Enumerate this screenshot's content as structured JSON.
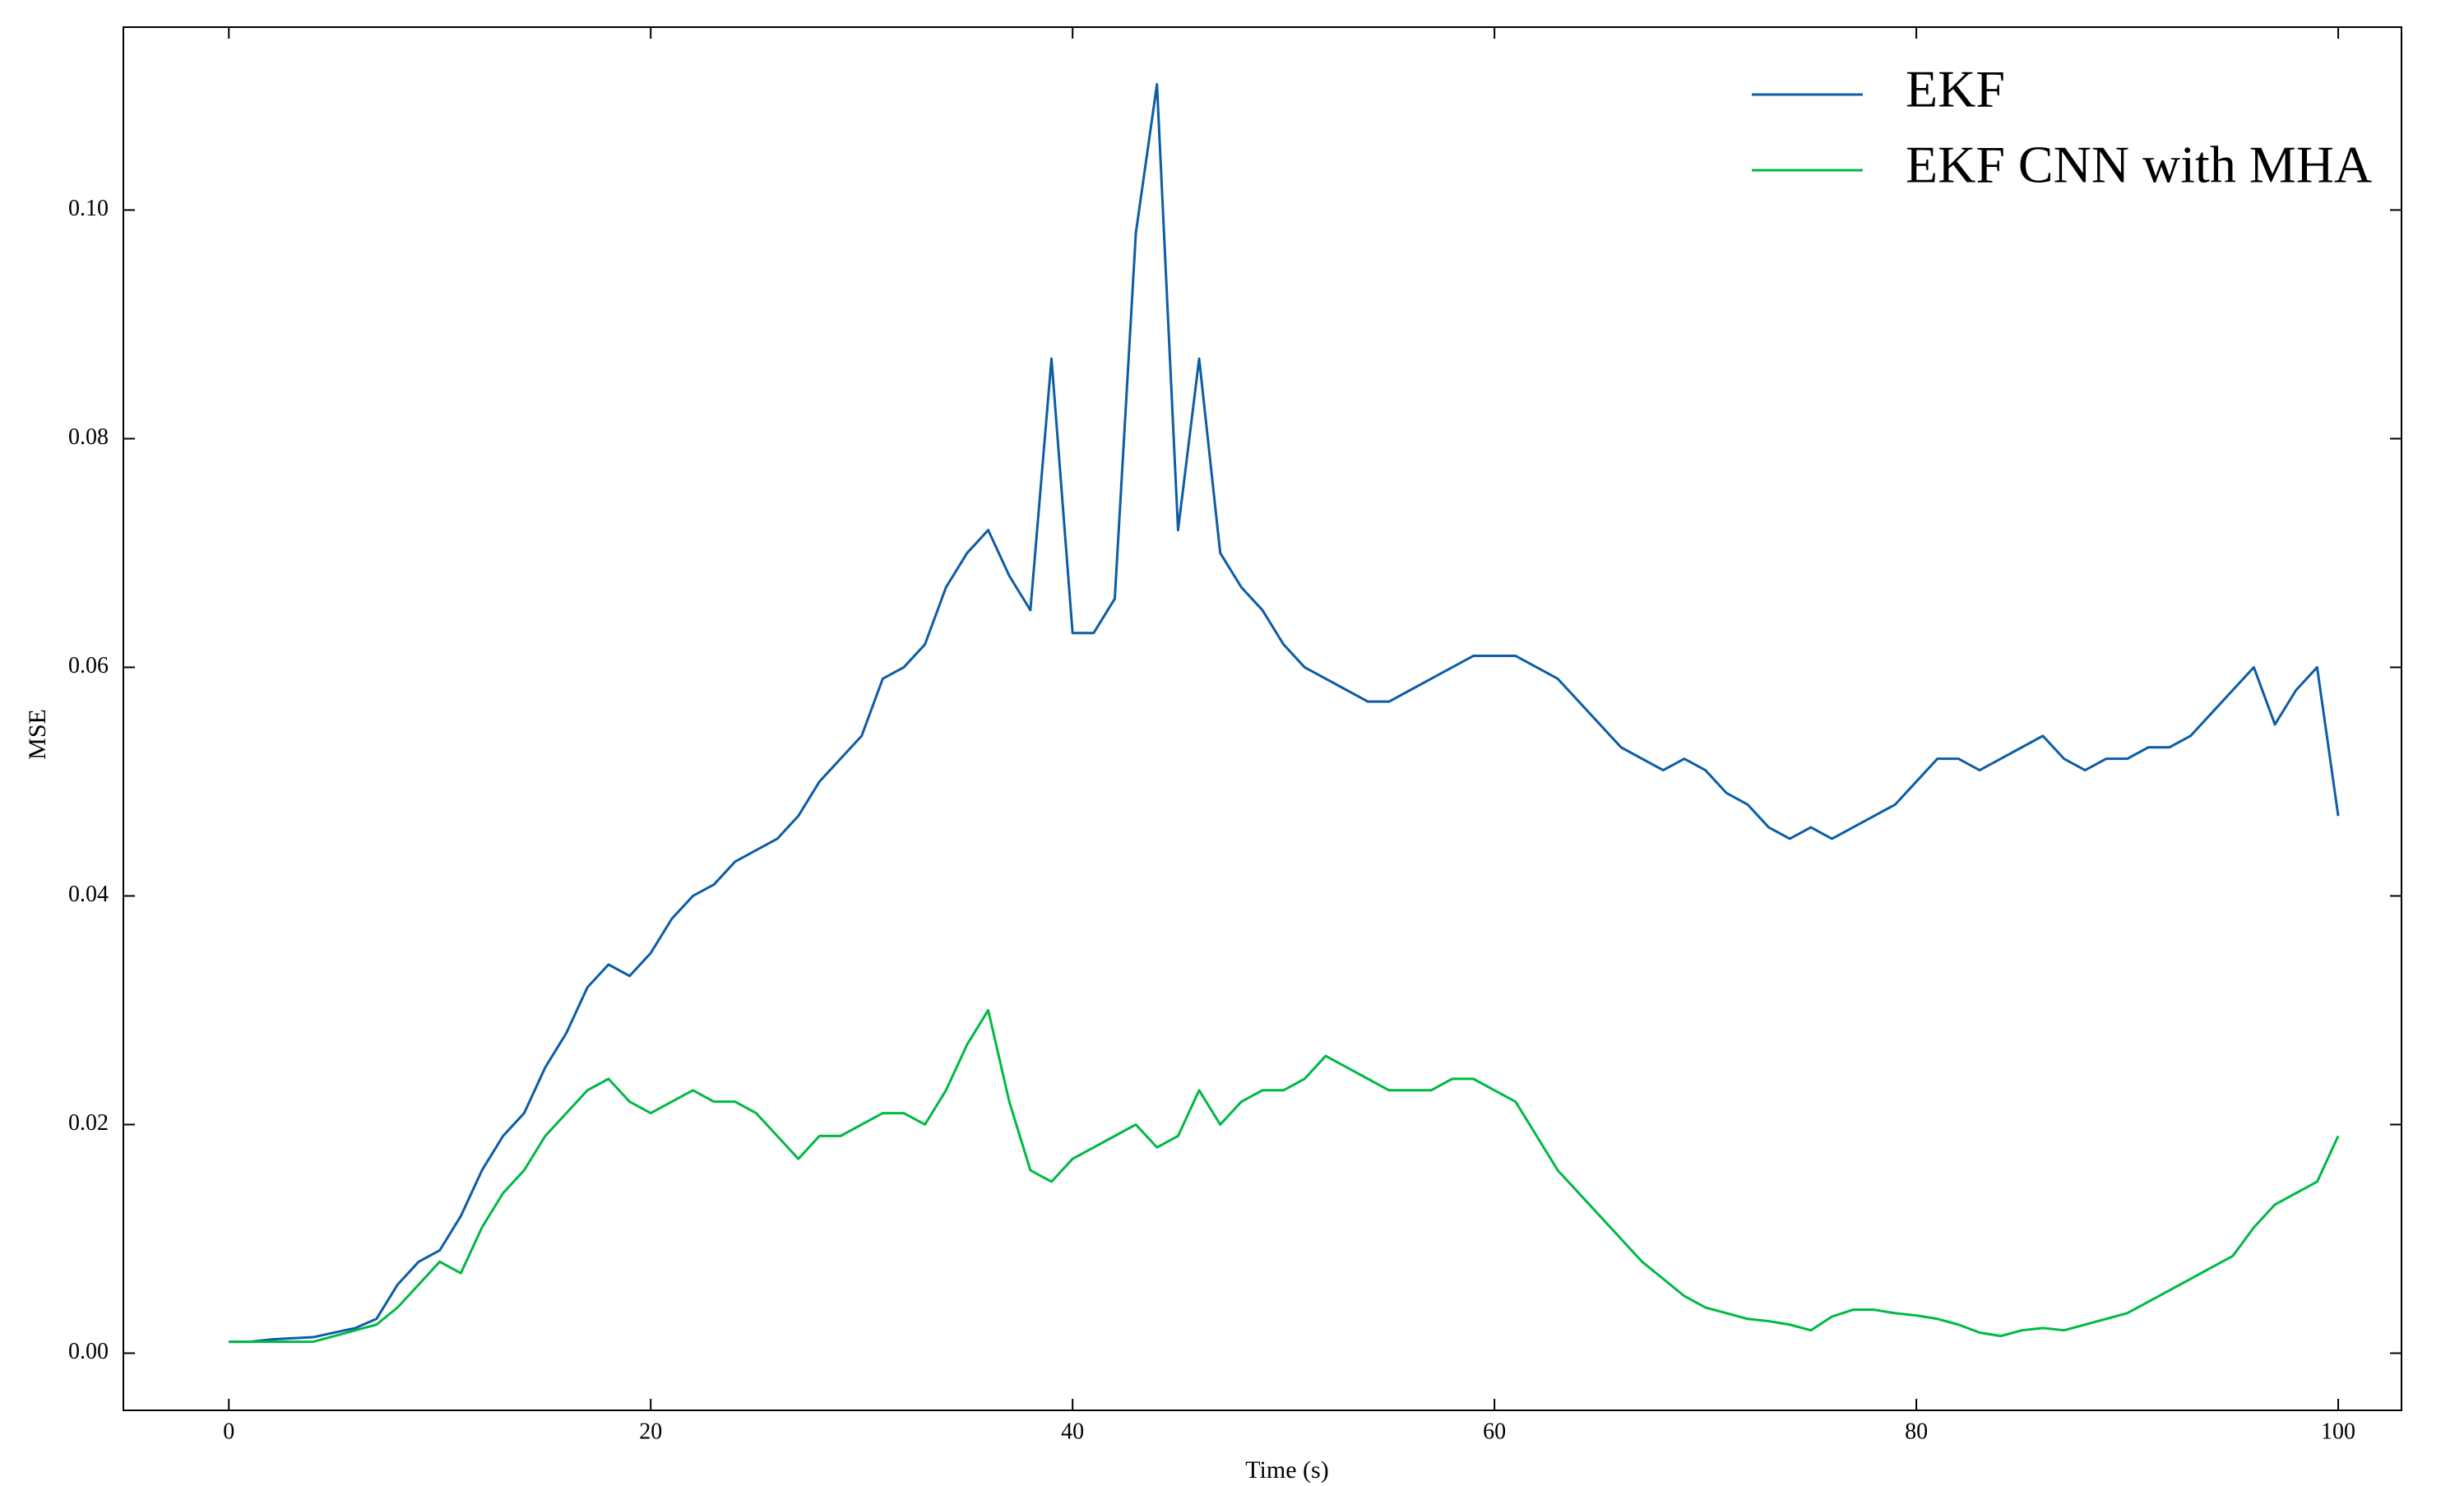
{
  "chart_data": {
    "type": "line",
    "xlabel": "Time (s)",
    "ylabel": "MSE",
    "x": [
      0,
      1,
      2,
      3,
      4,
      5,
      6,
      7,
      8,
      9,
      10,
      11,
      12,
      13,
      14,
      15,
      16,
      17,
      18,
      19,
      20,
      21,
      22,
      23,
      24,
      25,
      26,
      27,
      28,
      29,
      30,
      31,
      32,
      33,
      34,
      35,
      36,
      37,
      38,
      39,
      40,
      41,
      42,
      43,
      44,
      45,
      46,
      47,
      48,
      49,
      50,
      51,
      52,
      53,
      54,
      55,
      56,
      57,
      58,
      59,
      60,
      61,
      62,
      63,
      64,
      65,
      66,
      67,
      68,
      69,
      70,
      71,
      72,
      73,
      74,
      75,
      76,
      77,
      78,
      79,
      80,
      81,
      82,
      83,
      84,
      85,
      86,
      87,
      88,
      89,
      90,
      91,
      92,
      93,
      94,
      95,
      96,
      97,
      98,
      99,
      100
    ],
    "series": [
      {
        "name": "EKF",
        "color": "#0c5da5",
        "values": [
          0.001,
          0.001,
          0.0012,
          0.0013,
          0.0014,
          0.0018,
          0.0022,
          0.003,
          0.006,
          0.008,
          0.009,
          0.012,
          0.016,
          0.019,
          0.021,
          0.025,
          0.028,
          0.032,
          0.034,
          0.033,
          0.035,
          0.038,
          0.04,
          0.041,
          0.043,
          0.044,
          0.045,
          0.047,
          0.05,
          0.052,
          0.054,
          0.059,
          0.06,
          0.062,
          0.067,
          0.07,
          0.072,
          0.068,
          0.065,
          0.087,
          0.063,
          0.063,
          0.066,
          0.098,
          0.111,
          0.072,
          0.087,
          0.07,
          0.067,
          0.065,
          0.062,
          0.06,
          0.059,
          0.058,
          0.057,
          0.057,
          0.058,
          0.059,
          0.06,
          0.061,
          0.061,
          0.061,
          0.06,
          0.059,
          0.057,
          0.055,
          0.053,
          0.052,
          0.051,
          0.052,
          0.051,
          0.049,
          0.048,
          0.046,
          0.045,
          0.046,
          0.045,
          0.046,
          0.047,
          0.048,
          0.05,
          0.052,
          0.052,
          0.051,
          0.052,
          0.053,
          0.054,
          0.052,
          0.051,
          0.052,
          0.052,
          0.053,
          0.053,
          0.054,
          0.056,
          0.058,
          0.06,
          0.055,
          0.058,
          0.06,
          0.047
        ]
      },
      {
        "name": "EKF CNN with MHA",
        "color": "#00b945",
        "values": [
          0.001,
          0.001,
          0.001,
          0.001,
          0.001,
          0.0015,
          0.002,
          0.0025,
          0.004,
          0.006,
          0.008,
          0.007,
          0.011,
          0.014,
          0.016,
          0.019,
          0.021,
          0.023,
          0.024,
          0.022,
          0.021,
          0.022,
          0.023,
          0.022,
          0.022,
          0.021,
          0.019,
          0.017,
          0.019,
          0.019,
          0.02,
          0.021,
          0.021,
          0.02,
          0.023,
          0.027,
          0.03,
          0.022,
          0.016,
          0.015,
          0.017,
          0.018,
          0.019,
          0.02,
          0.018,
          0.019,
          0.023,
          0.02,
          0.022,
          0.023,
          0.023,
          0.024,
          0.026,
          0.025,
          0.024,
          0.023,
          0.023,
          0.023,
          0.024,
          0.024,
          0.023,
          0.022,
          0.019,
          0.016,
          0.014,
          0.012,
          0.01,
          0.008,
          0.0065,
          0.005,
          0.004,
          0.0035,
          0.003,
          0.0028,
          0.0025,
          0.002,
          0.0032,
          0.0038,
          0.0038,
          0.0035,
          0.0033,
          0.003,
          0.0025,
          0.0018,
          0.0015,
          0.002,
          0.0022,
          0.002,
          0.0025,
          0.003,
          0.0035,
          0.0045,
          0.0055,
          0.0065,
          0.0075,
          0.0085,
          0.011,
          0.013,
          0.014,
          0.015,
          0.019
        ]
      }
    ],
    "xlim": [
      -5,
      103
    ],
    "ylim": [
      -0.005,
      0.116
    ],
    "xticks": [
      0,
      20,
      40,
      60,
      80,
      100
    ],
    "yticks": [
      {
        "value": 0,
        "label": "0.00"
      },
      0.02,
      0.04,
      0.06,
      0.08,
      {
        "value": 0.1,
        "label": "0.10"
      }
    ],
    "grid": false,
    "legend": "upper right"
  }
}
